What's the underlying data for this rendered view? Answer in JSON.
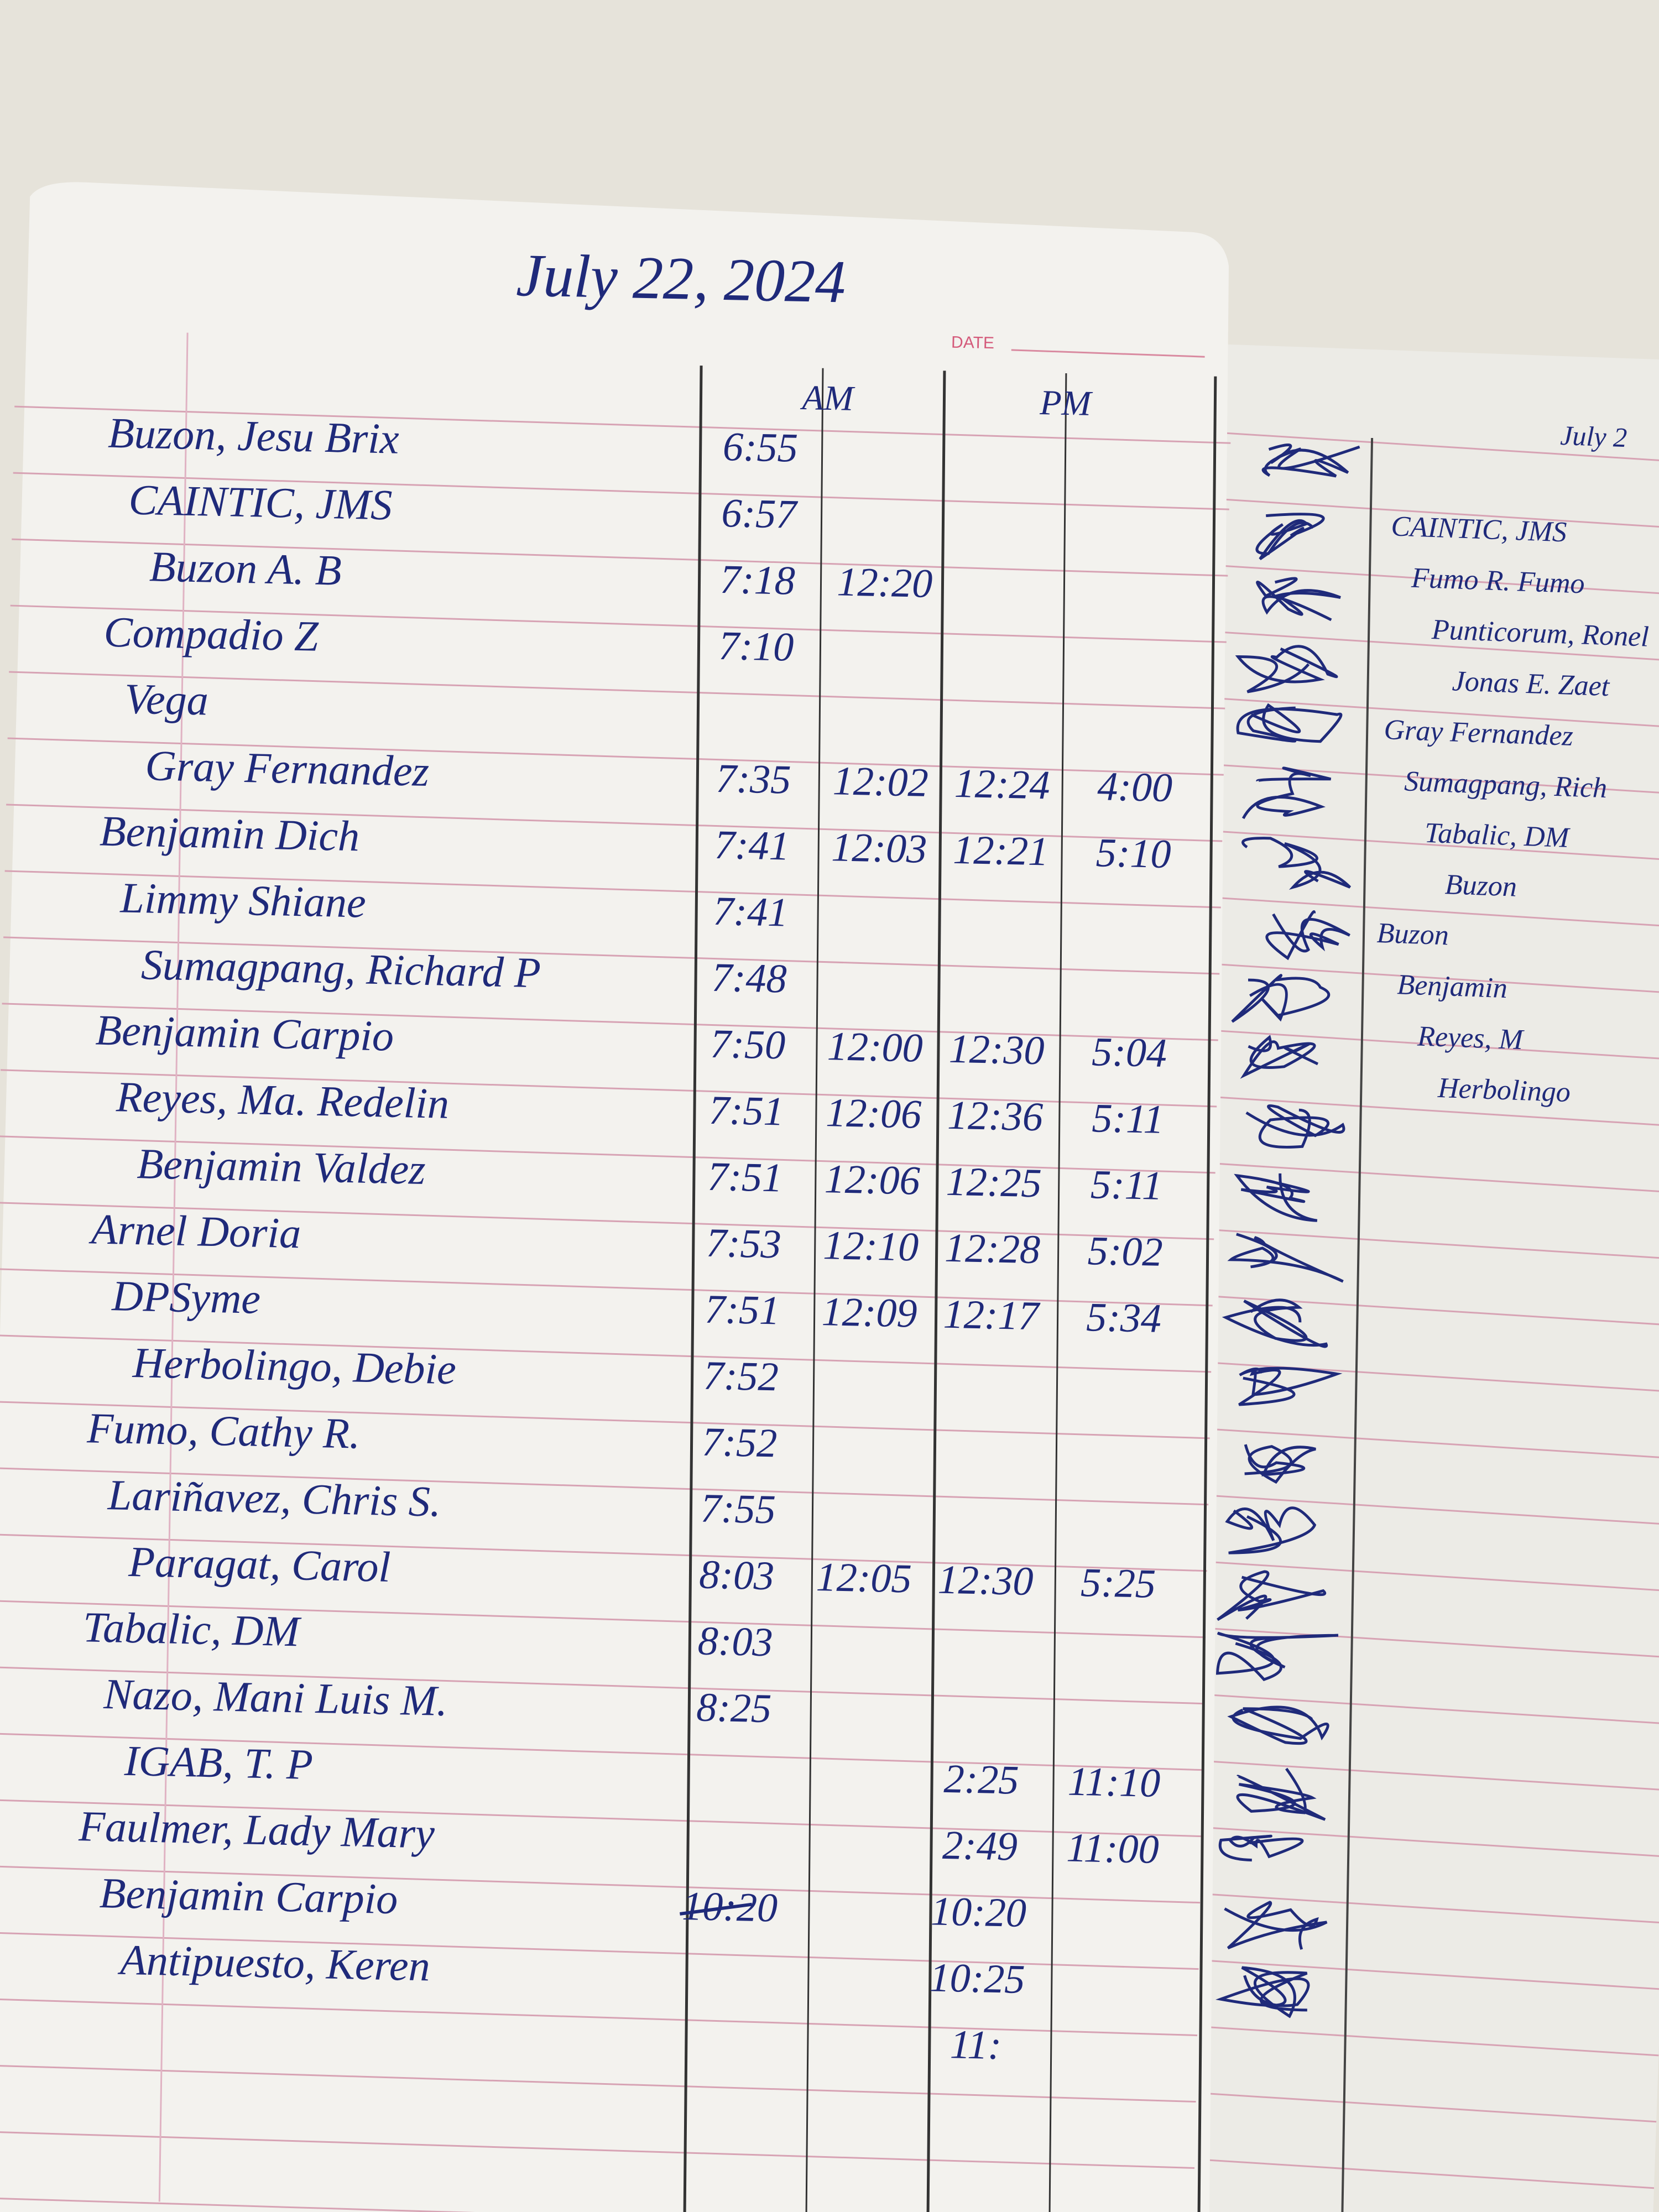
{
  "header": {
    "date": "July 22, 2024",
    "date_label": "DATE",
    "am_label": "AM",
    "pm_label": "PM"
  },
  "table": {
    "rows": [
      {
        "name": "Buzon, Jesu Brix",
        "times": {
          "am_in": "6:55"
        }
      },
      {
        "name": "CAINTIC, JMS",
        "times": {
          "am_in": "6:57"
        }
      },
      {
        "name": "Buzon A. B",
        "times": {
          "am_in": "7:18",
          "am_out": "12:20"
        }
      },
      {
        "name": "Compadio Z",
        "times": {
          "am_in": "7:10"
        }
      },
      {
        "name": "Vega",
        "times": {}
      },
      {
        "name": "Gray Fernandez",
        "times": {
          "am_in": "7:35",
          "am_out": "12:02",
          "pm_in": "12:24",
          "pm_out": "4:00"
        }
      },
      {
        "name": "Benjamin Dich",
        "times": {
          "am_in": "7:41",
          "am_out": "12:03",
          "pm_in": "12:21",
          "pm_out": "5:10"
        }
      },
      {
        "name": "Limmy Shiane",
        "times": {
          "am_in": "7:41"
        }
      },
      {
        "name": "Sumagpang, Richard P",
        "times": {
          "am_in": "7:48"
        }
      },
      {
        "name": "Benjamin Carpio",
        "times": {
          "am_in": "7:50",
          "am_out": "12:00",
          "pm_in": "12:30",
          "pm_out": "5:04"
        }
      },
      {
        "name": "Reyes, Ma. Redelin",
        "times": {
          "am_in": "7:51",
          "am_out": "12:06",
          "pm_in": "12:36",
          "pm_out": "5:11"
        }
      },
      {
        "name": "Benjamin Valdez",
        "times": {
          "am_in": "7:51",
          "am_out": "12:06",
          "pm_in": "12:25",
          "pm_out": "5:11"
        }
      },
      {
        "name": "Arnel Doria",
        "times": {
          "am_in": "7:53",
          "am_out": "12:10",
          "pm_in": "12:28",
          "pm_out": "5:02"
        }
      },
      {
        "name": "DPSyme",
        "times": {
          "am_in": "7:51",
          "am_out": "12:09",
          "pm_in": "12:17",
          "pm_out": "5:34"
        }
      },
      {
        "name": "Herbolingo, Debie",
        "times": {
          "am_in": "7:52"
        }
      },
      {
        "name": "Fumo, Cathy R.",
        "times": {
          "am_in": "7:52"
        }
      },
      {
        "name": "Lariñavez, Chris S.",
        "times": {
          "am_in": "7:55"
        }
      },
      {
        "name": "Paragat, Carol",
        "times": {
          "am_in": "8:03",
          "am_out": "12:05",
          "pm_in": "12:30",
          "pm_out": "5:25"
        }
      },
      {
        "name": "Tabalic, DM",
        "times": {
          "am_in": "8:03"
        }
      },
      {
        "name": "Nazo, Mani Luis M.",
        "times": {
          "am_in": "8:25"
        }
      },
      {
        "name": "IGAB, T. P",
        "times": {
          "pm_in": "2:25",
          "pm_out": "11:10"
        }
      },
      {
        "name": "Faulmer, Lady Mary",
        "times": {
          "pm_in": "2:49",
          "pm_out": "11:00"
        }
      },
      {
        "name": "Benjamin Carpio",
        "times": {
          "am_in": "10:20",
          "pm_in": "10:20"
        }
      },
      {
        "name": "Antipuesto, Keren",
        "times": {
          "pm_in": "10:25"
        }
      },
      {
        "times": {
          "pm_in": "11:"
        }
      }
    ]
  },
  "right_page": {
    "date": "July 2",
    "names": [
      "CAINTIC, JMS",
      "Fumo R. Fumo",
      "Punticorum, Ronel",
      "Jonas E. Zaet",
      "Gray Fernandez",
      "Sumagpang, Rich",
      "Tabalic, DM",
      "Buzon",
      "Buzon",
      "Benjamin",
      "Reyes, M",
      "Herbolingo"
    ]
  }
}
